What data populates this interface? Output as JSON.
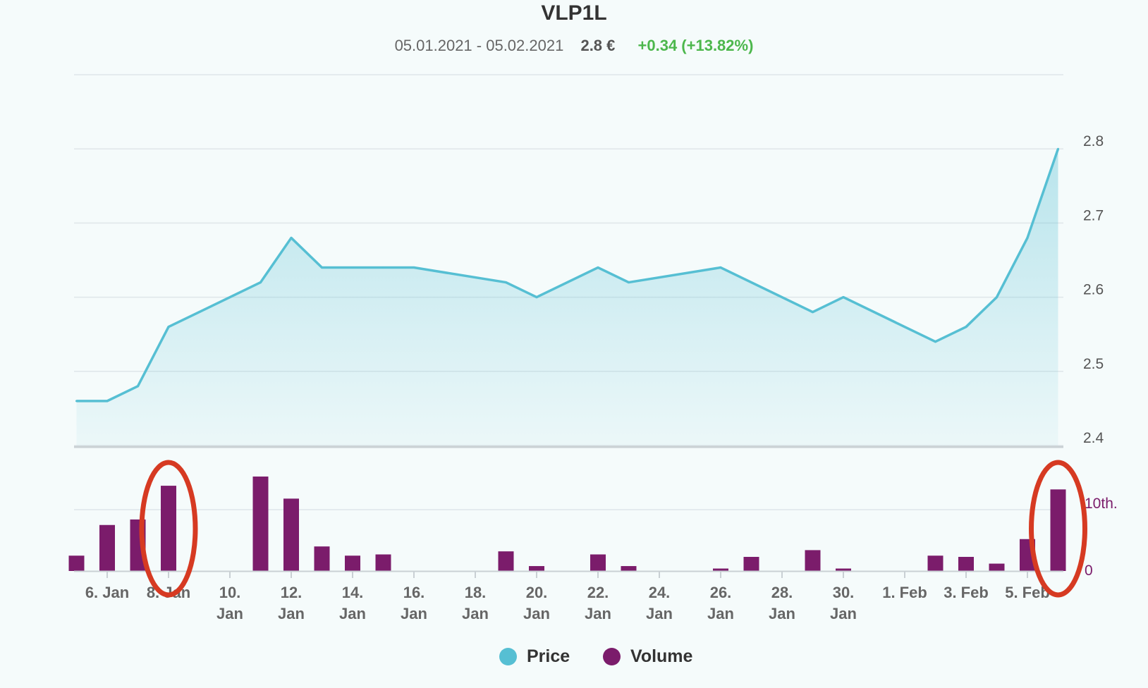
{
  "header": {
    "title": "VLP1L",
    "date_range": "05.01.2021 - 05.02.2021",
    "last_price": "2.8 €",
    "change": "+0.34 (+13.82%)"
  },
  "colors": {
    "price": "#56bfd3",
    "volume": "#7b1c6b",
    "change_positive": "#4cb74c",
    "annotation": "#d63a22"
  },
  "legend": {
    "price_label": "Price",
    "volume_label": "Volume"
  },
  "chart_data": {
    "type": "line",
    "price": {
      "name": "Price",
      "x": [
        "2021-01-05",
        "2021-01-06",
        "2021-01-07",
        "2021-01-08",
        "2021-01-09",
        "2021-01-11",
        "2021-01-12",
        "2021-01-13",
        "2021-01-14",
        "2021-01-15",
        "2021-01-16",
        "2021-01-19",
        "2021-01-20",
        "2021-01-22",
        "2021-01-23",
        "2021-01-26",
        "2021-01-29",
        "2021-01-30",
        "2021-02-02",
        "2021-02-03",
        "2021-02-04",
        "2021-02-05",
        "2021-02-06"
      ],
      "values": [
        2.46,
        2.46,
        2.48,
        2.56,
        2.58,
        2.62,
        2.68,
        2.64,
        2.64,
        2.64,
        2.64,
        2.62,
        2.6,
        2.64,
        2.62,
        2.64,
        2.58,
        2.6,
        2.54,
        2.56,
        2.6,
        2.68,
        2.8
      ],
      "ylim": [
        2.4,
        2.9
      ],
      "yticks": [
        "2.4",
        "2.5",
        "2.6",
        "2.7",
        "2.8"
      ]
    },
    "volume": {
      "name": "Volume",
      "x": [
        "2021-01-05",
        "2021-01-06",
        "2021-01-07",
        "2021-01-08",
        "2021-01-11",
        "2021-01-12",
        "2021-01-13",
        "2021-01-14",
        "2021-01-15",
        "2021-01-19",
        "2021-01-20",
        "2021-01-22",
        "2021-01-23",
        "2021-01-26",
        "2021-01-27",
        "2021-01-29",
        "2021-01-30",
        "2021-02-02",
        "2021-02-03",
        "2021-02-04",
        "2021-02-05",
        "2021-02-06"
      ],
      "values": [
        2.5,
        7.5,
        8.4,
        13.9,
        15.4,
        11.8,
        4.0,
        2.5,
        2.7,
        3.2,
        0.8,
        2.7,
        0.8,
        0.4,
        2.3,
        3.4,
        0.4,
        2.5,
        2.3,
        1.2,
        5.2,
        13.3
      ],
      "ylim": [
        0,
        20
      ],
      "yticks": [
        "0",
        "10th."
      ]
    },
    "x_ticks": [
      {
        "date": "2021-01-06",
        "line1": "6. Jan",
        "line2": ""
      },
      {
        "date": "2021-01-08",
        "line1": "8. Jan",
        "line2": ""
      },
      {
        "date": "2021-01-10",
        "line1": "10.",
        "line2": "Jan"
      },
      {
        "date": "2021-01-12",
        "line1": "12.",
        "line2": "Jan"
      },
      {
        "date": "2021-01-14",
        "line1": "14.",
        "line2": "Jan"
      },
      {
        "date": "2021-01-16",
        "line1": "16.",
        "line2": "Jan"
      },
      {
        "date": "2021-01-18",
        "line1": "18.",
        "line2": "Jan"
      },
      {
        "date": "2021-01-20",
        "line1": "20.",
        "line2": "Jan"
      },
      {
        "date": "2021-01-22",
        "line1": "22.",
        "line2": "Jan"
      },
      {
        "date": "2021-01-24",
        "line1": "24.",
        "line2": "Jan"
      },
      {
        "date": "2021-01-26",
        "line1": "26.",
        "line2": "Jan"
      },
      {
        "date": "2021-01-28",
        "line1": "28.",
        "line2": "Jan"
      },
      {
        "date": "2021-01-30",
        "line1": "30.",
        "line2": "Jan"
      },
      {
        "date": "2021-02-01",
        "line1": "1. Feb",
        "line2": ""
      },
      {
        "date": "2021-02-03",
        "line1": "3. Feb",
        "line2": ""
      },
      {
        "date": "2021-02-05",
        "line1": "5. Feb",
        "line2": ""
      }
    ],
    "annotations": [
      {
        "type": "ellipse",
        "date": "2021-01-08"
      },
      {
        "type": "ellipse",
        "date": "2021-02-06"
      }
    ],
    "legend_position": "bottom",
    "grid": true
  }
}
